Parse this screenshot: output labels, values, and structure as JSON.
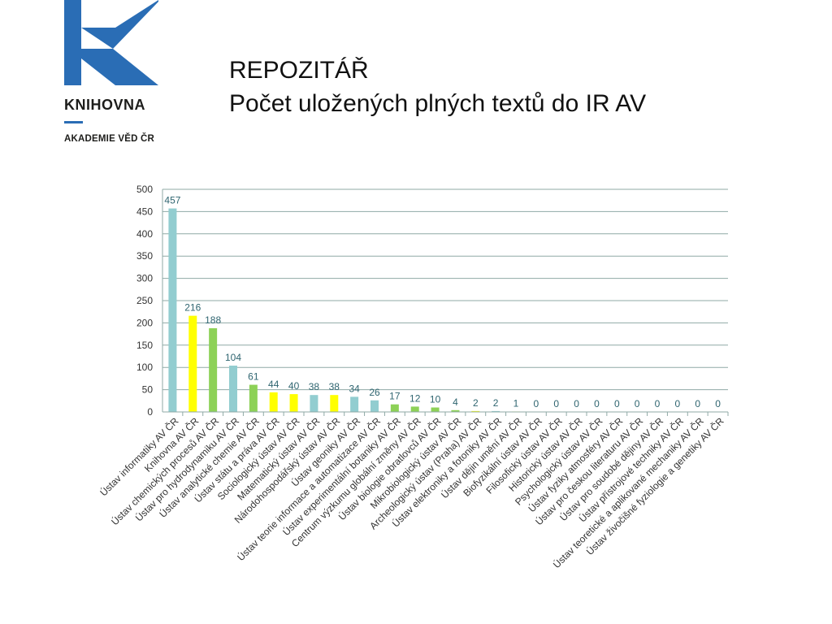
{
  "logo": {
    "word": "KNIHOVNA",
    "subword": "AKADEMIE VĚD ČR",
    "color": "#2a6db5"
  },
  "heading": {
    "line1": "REPOZITÁŘ",
    "line2": "Počet uložených plných textů do IR AV"
  },
  "chart_data": {
    "type": "bar",
    "title": "",
    "xlabel": "",
    "ylabel": "",
    "ylim": [
      0,
      500
    ],
    "yticks": [
      0,
      50,
      100,
      150,
      200,
      250,
      300,
      350,
      400,
      450,
      500
    ],
    "grid": true,
    "legend": "none",
    "categories": [
      "Ústav informatiky AV ČR",
      "Knihovna AV ČR",
      "Ústav chemických procesů AV ČR",
      "Ústav pro hydrodynamiku AV ČR",
      "Ústav analytické chemie AV ČR",
      "Ústav státu a práva AV ČR",
      "Sociologický ústav AV ČR",
      "Matematický ústav AV ČR",
      "Národohospodářský ústav AV ČR",
      "Ústav geoniky AV ČR",
      "Ústav teorie informace a automatizace AV ČR",
      "Ústav experimentální botaniky AV ČR",
      "Centrum výzkumu globální změny AV ČR",
      "Ústav biologie obratlovců AV ČR",
      "Mikrobiologický ústav AV ČR",
      "Archeologický ústav (Praha) AV ČR",
      "Ústav elektroniky a fotoniky AV ČR",
      "Ústav dějin umění AV ČR",
      "Biofyzikální ústav AV ČR",
      "Filosofický ústav AV ČR",
      "Historický ústav AV ČR",
      "Psychologický ústav AV ČR",
      "Ústav fyziky atmosféry AV ČR",
      "Ústav pro českou literaturu AV ČR",
      "Ústav pro soudobé dějiny AV ČR",
      "Ústav přístrojové techniky AV ČR",
      "Ústav teoretické a aplikované mechaniky AV ČR",
      "Ústav živočišné fyziologie a genetiky AV ČR"
    ],
    "values": [
      457,
      216,
      188,
      104,
      61,
      44,
      40,
      38,
      38,
      34,
      26,
      17,
      12,
      10,
      4,
      2,
      2,
      1,
      0,
      0,
      0,
      0,
      0,
      0,
      0,
      0,
      0,
      0
    ],
    "bar_colors": [
      "#92cdd0",
      "#ffff00",
      "#8dd157",
      "#92cdd0",
      "#8dd157",
      "#ffff00",
      "#ffff00",
      "#92cdd0",
      "#ffff00",
      "#92cdd0",
      "#92cdd0",
      "#8dd157",
      "#8dd157",
      "#8dd157",
      "#8dd157",
      "#ffff00",
      "#92cdd0",
      "#ffff00",
      "#92cdd0",
      "#ffff00",
      "#ffff00",
      "#ffff00",
      "#92cdd0",
      "#ffff00",
      "#ffff00",
      "#92cdd0",
      "#92cdd0",
      "#8dd157"
    ],
    "label_color": "#2f6570",
    "grid_color": "#8fa9a6"
  }
}
